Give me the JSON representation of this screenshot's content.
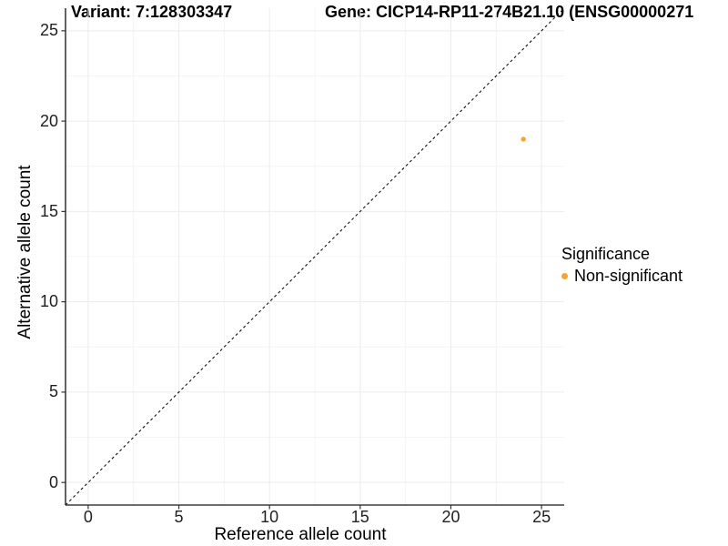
{
  "header": {
    "variant_title": "Variant: 7:128303347",
    "gene_title": "Gene: CICP14-RP11-274B21.10 (ENSG00000271"
  },
  "legend": {
    "title": "Significance",
    "items": [
      {
        "label": "Non-significant",
        "color": "#F9A232"
      }
    ]
  },
  "chart_data": {
    "type": "scatter",
    "title": "Variant: 7:128303347 — Gene: CICP14-RP11-274B21.10 (ENSG00000271…)",
    "xlabel": "Reference allele count",
    "ylabel": "Alternative allele count",
    "xlim": [
      -1.25,
      26.25
    ],
    "ylim": [
      -1.25,
      26.25
    ],
    "x_ticks": [
      0,
      5,
      10,
      15,
      20,
      25
    ],
    "y_ticks": [
      0,
      5,
      10,
      15,
      20,
      25
    ],
    "grid": "major+minor",
    "legend_position": "right",
    "identity_line": {
      "style": "dashed",
      "slope": 1,
      "intercept": 0
    },
    "series": [
      {
        "name": "Non-significant",
        "color": "#F9A232",
        "points": [
          {
            "x": 24,
            "y": 19
          }
        ]
      }
    ]
  }
}
